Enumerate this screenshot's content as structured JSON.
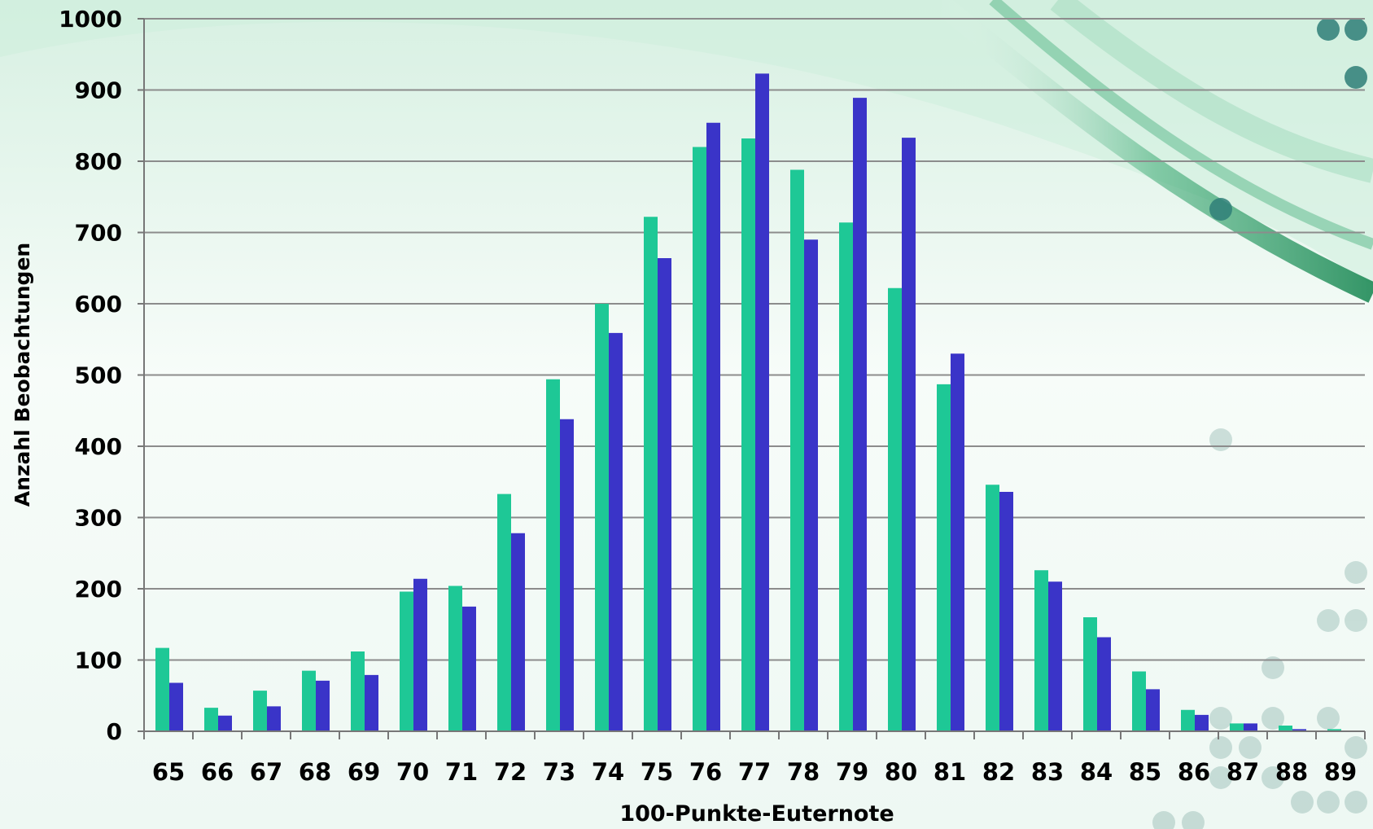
{
  "chart_data": {
    "type": "bar",
    "title": "",
    "xlabel": "100-Punkte-Euternote",
    "ylabel": "Anzahl Beobachtungen",
    "ylim": [
      0,
      1000
    ],
    "yticks": [
      0,
      100,
      200,
      300,
      400,
      500,
      600,
      700,
      800,
      900,
      1000
    ],
    "grid": true,
    "legend": "none",
    "categories": [
      "65",
      "66",
      "67",
      "68",
      "69",
      "70",
      "71",
      "72",
      "73",
      "74",
      "75",
      "76",
      "77",
      "78",
      "79",
      "80",
      "81",
      "82",
      "83",
      "84",
      "85",
      "86",
      "87",
      "88",
      "89"
    ],
    "series": [
      {
        "color": "#1ec896",
        "values": [
          117,
          33,
          57,
          85,
          112,
          196,
          204,
          333,
          494,
          600,
          722,
          820,
          832,
          788,
          714,
          622,
          487,
          346,
          226,
          160,
          84,
          30,
          11,
          8,
          3
        ]
      },
      {
        "color": "#3a34c8",
        "values": [
          68,
          22,
          35,
          71,
          79,
          214,
          175,
          278,
          438,
          559,
          664,
          854,
          923,
          690,
          889,
          833,
          530,
          336,
          210,
          132,
          59,
          23,
          11,
          3,
          1
        ]
      }
    ]
  }
}
